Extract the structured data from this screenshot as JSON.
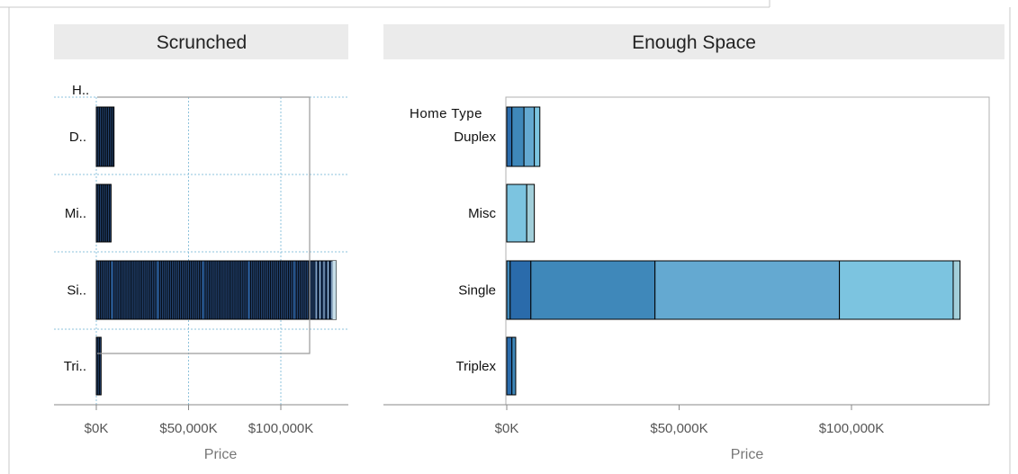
{
  "panels": {
    "left": {
      "title": "Scrunched",
      "row_header": "H..",
      "x_title": "Price"
    },
    "right": {
      "title": "Enough Space",
      "row_header": "Home Type",
      "x_title": "Price"
    }
  },
  "colors": {
    "header_bg": "#ebebeb",
    "outline": "#000000",
    "left_palette": [
      "#1d3a64",
      "#22426f",
      "#284a7a",
      "#2f5687",
      "#385f91"
    ],
    "light_edge": "#c8dfe9",
    "blue_1": "#2a6bab",
    "blue_2": "#3f88ba",
    "blue_3": "#64a9d1",
    "blue_4": "#7cc4e0",
    "blue_5": "#a2cfda"
  },
  "chart_data": [
    {
      "type": "bar",
      "stacked": true,
      "title": "Scrunched",
      "row_header": "H..",
      "xlabel": "Price",
      "ylabel": "",
      "xlim": [
        -1000,
        132000
      ],
      "x_ticks": [
        0,
        50000,
        100000
      ],
      "x_tick_labels": [
        "$0K",
        "$50,000K",
        "$100,000K"
      ],
      "categories": [
        "D..",
        "Mi..",
        "Si..",
        "Tri.."
      ],
      "totals": [
        9600,
        8000,
        130000,
        2600
      ],
      "many_thin_segments": true,
      "grid": true
    },
    {
      "type": "bar",
      "stacked": true,
      "title": "Enough Space",
      "row_header": "Home Type",
      "xlabel": "Price",
      "ylabel": "",
      "xlim": [
        0,
        132000
      ],
      "x_ticks": [
        0,
        50000,
        100000
      ],
      "x_tick_labels": [
        "$0K",
        "$50,000K",
        "$100,000K"
      ],
      "categories": [
        "Duplex",
        "Misc",
        "Single",
        "Triplex"
      ],
      "segments": [
        [
          {
            "value": 1500,
            "color": "#2a6bab"
          },
          {
            "value": 3500,
            "color": "#3f88ba"
          },
          {
            "value": 3000,
            "color": "#64a9d1"
          },
          {
            "value": 1600,
            "color": "#7cc4e0"
          }
        ],
        [
          {
            "value": 5800,
            "color": "#7cc4e0"
          },
          {
            "value": 2200,
            "color": "#a2cfda"
          }
        ],
        [
          {
            "value": 1000,
            "color": "#3f88ba"
          },
          {
            "value": 6000,
            "color": "#2a6bab"
          },
          {
            "value": 36000,
            "color": "#3f88ba"
          },
          {
            "value": 53500,
            "color": "#64a9d1"
          },
          {
            "value": 33000,
            "color": "#7cc4e0"
          },
          {
            "value": 2000,
            "color": "#a2cfda"
          }
        ],
        [
          {
            "value": 1500,
            "color": "#2a6bab"
          },
          {
            "value": 1100,
            "color": "#3f88ba"
          }
        ]
      ],
      "grid": false
    }
  ]
}
